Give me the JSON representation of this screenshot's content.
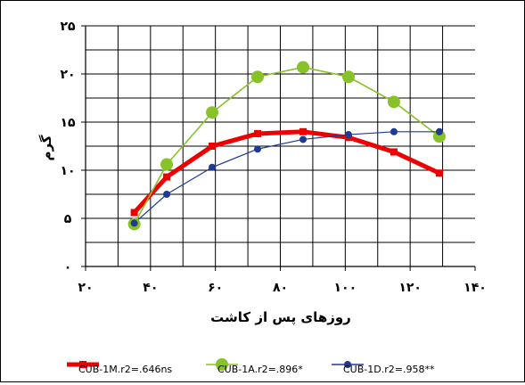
{
  "chart_data": {
    "type": "line",
    "title": "",
    "xlabel": "روزهای پس از کاشت",
    "ylabel": "گرم",
    "xlim": [
      20,
      140
    ],
    "ylim": [
      0,
      25
    ],
    "x_ticks": [
      20,
      40,
      60,
      80,
      100,
      120,
      140
    ],
    "y_ticks": [
      0,
      5,
      10,
      15,
      20,
      25
    ],
    "x_tick_labels": [
      "۲۰",
      "۴۰",
      "۶۰",
      "۸۰",
      "۱۰۰",
      "۱۲۰",
      "۱۴۰"
    ],
    "y_tick_labels": [
      "۰",
      "۵",
      "۱۰",
      "۱۵",
      "۲۰",
      "۲۵"
    ],
    "grid": true,
    "legend_position": "bottom",
    "series": [
      {
        "name": "CUB-1M.r2=.646ns",
        "color": "#ee0000",
        "marker": "square",
        "x": [
          35,
          45,
          59,
          73,
          87,
          101,
          115,
          129
        ],
        "y": [
          5.6,
          9.3,
          12.5,
          13.8,
          14.0,
          13.4,
          11.9,
          9.7
        ]
      },
      {
        "name": "CUB-1A.r2=.896*",
        "color": "#88c22a",
        "marker": "circle",
        "x": [
          35,
          45,
          59,
          73,
          87,
          101,
          115,
          129
        ],
        "y": [
          4.4,
          10.6,
          16.0,
          19.7,
          20.7,
          19.7,
          17.1,
          13.5
        ]
      },
      {
        "name": "CUB-1D.r2=.958**",
        "color": "#1f3a93",
        "marker": "circle",
        "x": [
          35,
          45,
          59,
          73,
          87,
          101,
          115,
          129
        ],
        "y": [
          4.5,
          7.5,
          10.3,
          12.2,
          13.2,
          13.7,
          14.0,
          14.0
        ]
      }
    ]
  }
}
